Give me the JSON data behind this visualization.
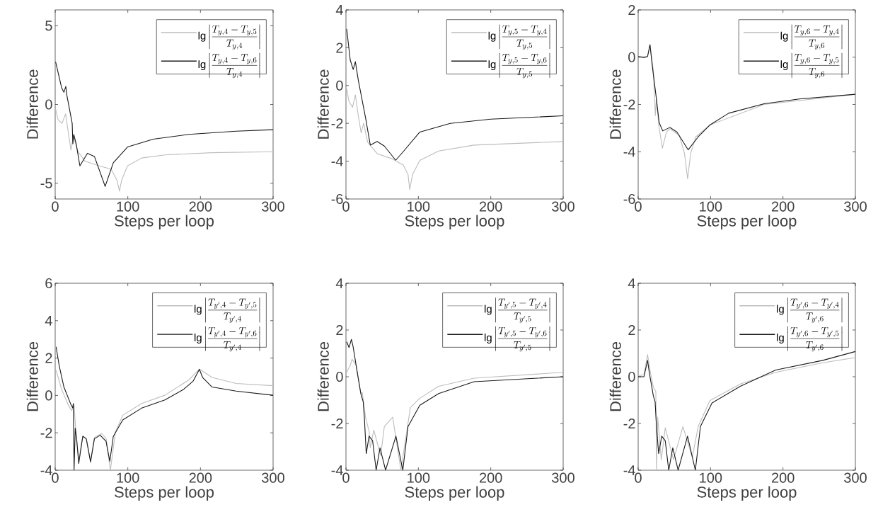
{
  "chart_data": [
    {
      "type": "line",
      "xlabel": "Steps per loop",
      "ylabel": "Difference",
      "xlim": [
        0,
        300
      ],
      "ylim": [
        -6,
        6
      ],
      "xticks": [
        0,
        100,
        200,
        300
      ],
      "yticks": [
        -5,
        0,
        5
      ],
      "legend": "top right",
      "line_style": "solid",
      "marker": "none",
      "series": [
        {
          "name": "\\lg\\left|\\frac{T_{y,4}-T_{y,5}}{T_{y,4}}\\right|",
          "color": "#bdbdbd",
          "x": [
            0.6,
            3.9,
            9.4,
            14.3,
            21.7,
            25,
            31.5,
            41,
            60.7,
            76.9,
            85,
            88.5,
            91.5,
            99.6,
            119,
            151,
            216,
            300
          ],
          "values": [
            -0.3,
            -0.96,
            -1.2,
            -0.6,
            -2.9,
            -2,
            -3,
            -3.6,
            -3.9,
            -4.1,
            -4.8,
            -5.5,
            -4.8,
            -3.9,
            -3.4,
            -3.2,
            -3.06,
            -3.0
          ]
        },
        {
          "name": "\\lg\\left|\\frac{T_{y,4}-T_{y,6}}{T_{y,4}}\\right|",
          "color": "#1a1a1a",
          "x": [
            0.6,
            8.8,
            12,
            14.6,
            16,
            23.4,
            24.3,
            25.6,
            28.9,
            34,
            44.4,
            54,
            68.8,
            80,
            99.6,
            135,
            184,
            249,
            300
          ],
          "values": [
            2.7,
            1.07,
            0.77,
            1.14,
            0.6,
            -1.2,
            -2.5,
            -1.9,
            -2.5,
            -3.9,
            -3.1,
            -3.3,
            -5.2,
            -3.7,
            -2.7,
            -2.2,
            -1.9,
            -1.7,
            -1.6
          ]
        }
      ]
    },
    {
      "type": "line",
      "xlabel": "Steps per loop",
      "ylabel": "Difference",
      "xlim": [
        0,
        300
      ],
      "ylim": [
        -6,
        4
      ],
      "xticks": [
        0,
        100,
        200,
        300
      ],
      "yticks": [
        -6,
        -4,
        -2,
        0,
        2,
        4
      ],
      "legend": "top right",
      "line_style": "solid",
      "marker": "none",
      "series": [
        {
          "name": "\\lg\\left|\\frac{T_{y,5}-T_{y,4}}{T_{y,5}}\\right|",
          "color": "#bdbdbd",
          "x": [
            1,
            4.2,
            9,
            13,
            17,
            21,
            24.4,
            30,
            43,
            63,
            79,
            85.7,
            88,
            92,
            102,
            128,
            177,
            300
          ],
          "values": [
            -0.15,
            -0.84,
            -1.15,
            -0.5,
            -1.6,
            -2.5,
            -2,
            -3,
            -3.6,
            -3.86,
            -4.2,
            -4.7,
            -5.5,
            -4.7,
            -3.96,
            -3.46,
            -3.15,
            -2.96
          ]
        },
        {
          "name": "\\lg\\left|\\frac{T_{y,5}-T_{y,6}}{T_{y,5}}\\right|",
          "color": "#1a1a1a",
          "x": [
            1,
            5.9,
            10,
            13,
            17,
            27,
            33.6,
            43,
            53,
            68.7,
            79,
            102,
            144,
            200,
            300
          ],
          "values": [
            3.0,
            1.35,
            0.85,
            1.26,
            0.29,
            -1.7,
            -3.15,
            -2.96,
            -3.2,
            -3.95,
            -3.5,
            -2.46,
            -2.0,
            -1.78,
            -1.6
          ]
        }
      ]
    },
    {
      "type": "line",
      "xlabel": "Steps per loop",
      "ylabel": "Difference",
      "xlim": [
        0,
        300
      ],
      "ylim": [
        -6,
        2
      ],
      "xticks": [
        0,
        100,
        200,
        300
      ],
      "yticks": [
        -6,
        -4,
        -2,
        0,
        2
      ],
      "legend": "top right",
      "line_style": "solid",
      "marker": "none",
      "series": [
        {
          "name": "\\lg\\left|\\frac{T_{y,6}-T_{y,4}}{T_{y,6}}\\right|",
          "color": "#bdbdbd",
          "x": [
            0,
            13,
            16.3,
            21,
            23.7,
            25,
            29,
            33.5,
            39,
            43.9,
            56.9,
            64,
            68.3,
            72.5,
            79.6,
            99,
            174,
            300
          ],
          "values": [
            0.03,
            0.03,
            0.53,
            -0.57,
            -2.47,
            -1.77,
            -3.0,
            -3.85,
            -3.17,
            -3.02,
            -3.32,
            -4.07,
            -5.15,
            -4.07,
            -3.37,
            -2.87,
            -2.0,
            -1.57
          ]
        },
        {
          "name": "\\lg\\left|\\frac{T_{y,6}-T_{y,5}}{T_{y,6}}\\right|",
          "color": "#1a1a1a",
          "x": [
            0,
            8,
            13,
            16.3,
            19.5,
            24.4,
            29,
            34,
            43.9,
            53.6,
            69,
            82.9,
            99,
            125,
            174,
            222.6,
            300
          ],
          "values": [
            0.03,
            -0.02,
            0.03,
            0.53,
            -0.37,
            -1.57,
            -2.77,
            -3.12,
            -2.97,
            -3.17,
            -3.92,
            -3.37,
            -2.87,
            -2.37,
            -1.97,
            -1.77,
            -1.57
          ]
        }
      ]
    },
    {
      "type": "line",
      "xlabel": "Steps per loop",
      "ylabel": "Difference",
      "xlim": [
        0,
        300
      ],
      "ylim": [
        -4,
        6
      ],
      "xticks": [
        0,
        100,
        200,
        300
      ],
      "yticks": [
        -4,
        -2,
        0,
        2,
        4,
        6
      ],
      "legend": "top right",
      "line_style": "solid",
      "marker": "none",
      "series": [
        {
          "name": "\\lg\\left|\\frac{T_{y',4}-T_{y',5}}{T_{y',4}}\\right|",
          "color": "#bdbdbd",
          "x": [
            1.3,
            8.8,
            18.5,
            22.7,
            26,
            28,
            32.4,
            38,
            42.8,
            48.7,
            54,
            64,
            70,
            76,
            83,
            93,
            119,
            151,
            184,
            198.5,
            206.6,
            216,
            249,
            300
          ],
          "values": [
            1.34,
            0.33,
            -0.55,
            -0.81,
            -0.5,
            -1.69,
            -3.47,
            -2.15,
            -2.3,
            -3.5,
            -2.25,
            -2.04,
            -2.3,
            -4,
            -1.94,
            -1.06,
            -0.43,
            0.01,
            0.83,
            1.4,
            1.21,
            0.96,
            0.64,
            0.52
          ]
        },
        {
          "name": "\\lg\\left|\\frac{T_{y',4}-T_{y',6}}{T_{y',4}}\\right|",
          "color": "#1a1a1a",
          "x": [
            1.3,
            5.5,
            12,
            21.7,
            24,
            25,
            26,
            27.6,
            29.8,
            32.4,
            38,
            42.8,
            48.7,
            54,
            62,
            70,
            75.2,
            80,
            93,
            119,
            151,
            177,
            190,
            198.5,
            203,
            216,
            249,
            300
          ],
          "values": [
            2.6,
            1.59,
            0.45,
            -0.49,
            -0.66,
            -0.43,
            -4,
            -1.75,
            -2.45,
            -3.64,
            -2.19,
            -2.32,
            -3.56,
            -2.32,
            -2.13,
            -2.45,
            -3.52,
            -2.19,
            -1.31,
            -0.68,
            -0.24,
            0.33,
            0.77,
            1.4,
            0.96,
            0.45,
            0.23,
            0.01
          ]
        }
      ]
    },
    {
      "type": "line",
      "xlabel": "Steps per loop",
      "ylabel": "Difference",
      "xlim": [
        0,
        300
      ],
      "ylim": [
        -4,
        4
      ],
      "xticks": [
        0,
        100,
        200,
        300
      ],
      "yticks": [
        -4,
        -2,
        0,
        2,
        4
      ],
      "legend": "top right",
      "line_style": "solid",
      "marker": "none",
      "series": [
        {
          "name": "\\lg\\left|\\frac{T_{y',5}-T_{y',4}}{T_{y',5}}\\right|",
          "color": "#bdbdbd",
          "x": [
            1,
            5.9,
            8.5,
            14,
            20.5,
            22.5,
            24.4,
            27,
            31.9,
            33.5,
            38.4,
            48,
            53,
            64.5,
            75.9,
            88.9,
            102,
            128,
            177,
            300
          ],
          "values": [
            0.19,
            0.49,
            0.75,
            0.49,
            -0.72,
            -0.67,
            -1.12,
            -1.73,
            -2.33,
            -3.04,
            -2.28,
            -3.37,
            -2.13,
            -1.73,
            -4,
            -1.32,
            -0.92,
            -0.41,
            -0.06,
            0.19
          ]
        },
        {
          "name": "\\lg\\left|\\frac{T_{y',5}-T_{y',6}}{T_{y',5}}\\right|",
          "color": "#1a1a1a",
          "x": [
            1,
            4.2,
            7.5,
            9.8,
            14,
            20.5,
            23.8,
            25.4,
            28,
            31.9,
            36.8,
            41.7,
            47,
            54.7,
            69,
            78.5,
            85.7,
            102,
            128,
            177,
            300
          ],
          "values": [
            1.5,
            1.25,
            1.6,
            1.3,
            0.49,
            -0.72,
            -1.07,
            -1.73,
            -3.29,
            -2.54,
            -2.74,
            -4,
            -3.04,
            -4,
            -2.54,
            -4,
            -2.13,
            -1.22,
            -0.72,
            -0.21,
            0
          ]
        }
      ]
    },
    {
      "type": "line",
      "xlabel": "Steps per loop",
      "ylabel": "Difference",
      "xlim": [
        0,
        300
      ],
      "ylim": [
        -4,
        4
      ],
      "xticks": [
        0,
        100,
        200,
        300
      ],
      "yticks": [
        -4,
        -2,
        0,
        2,
        4
      ],
      "legend": "top right",
      "line_style": "solid",
      "marker": "none",
      "series": [
        {
          "name": "\\lg\\left|\\frac{T_{y',6}-T_{y',4}}{T_{y',6}}\\right|",
          "color": "#bdbdbd",
          "x": [
            0,
            8,
            13,
            16.3,
            21,
            24.4,
            25.3,
            27,
            31.9,
            37.4,
            48.8,
            61.8,
            74.7,
            82.9,
            99,
            141,
            190,
            255,
            300
          ],
          "values": [
            0.04,
            0.09,
            0.95,
            0.29,
            -0.46,
            -0.62,
            -4,
            -1.73,
            -3.55,
            -2.18,
            -3.55,
            -2.13,
            -3.44,
            -2.13,
            -1.02,
            -0.31,
            0.19,
            0.6,
            0.82
          ]
        },
        {
          "name": "\\lg\\left|\\frac{T_{y',6}-T_{y',5}}{T_{y',6}}\\right|",
          "color": "#1a1a1a",
          "x": [
            0,
            8,
            13,
            15.3,
            21,
            23.4,
            25.3,
            28.3,
            32.5,
            37.4,
            42.2,
            47.8,
            55.2,
            68.2,
            79,
            86,
            102,
            141,
            190,
            255,
            300
          ],
          "values": [
            0,
            0,
            0.7,
            0.19,
            -0.82,
            -1.07,
            -2.13,
            -3.29,
            -2.54,
            -2.74,
            -4,
            -3.04,
            -4,
            -2.54,
            -4,
            -2.13,
            -1.12,
            -0.41,
            0.29,
            0.7,
            1.08
          ]
        }
      ]
    }
  ]
}
